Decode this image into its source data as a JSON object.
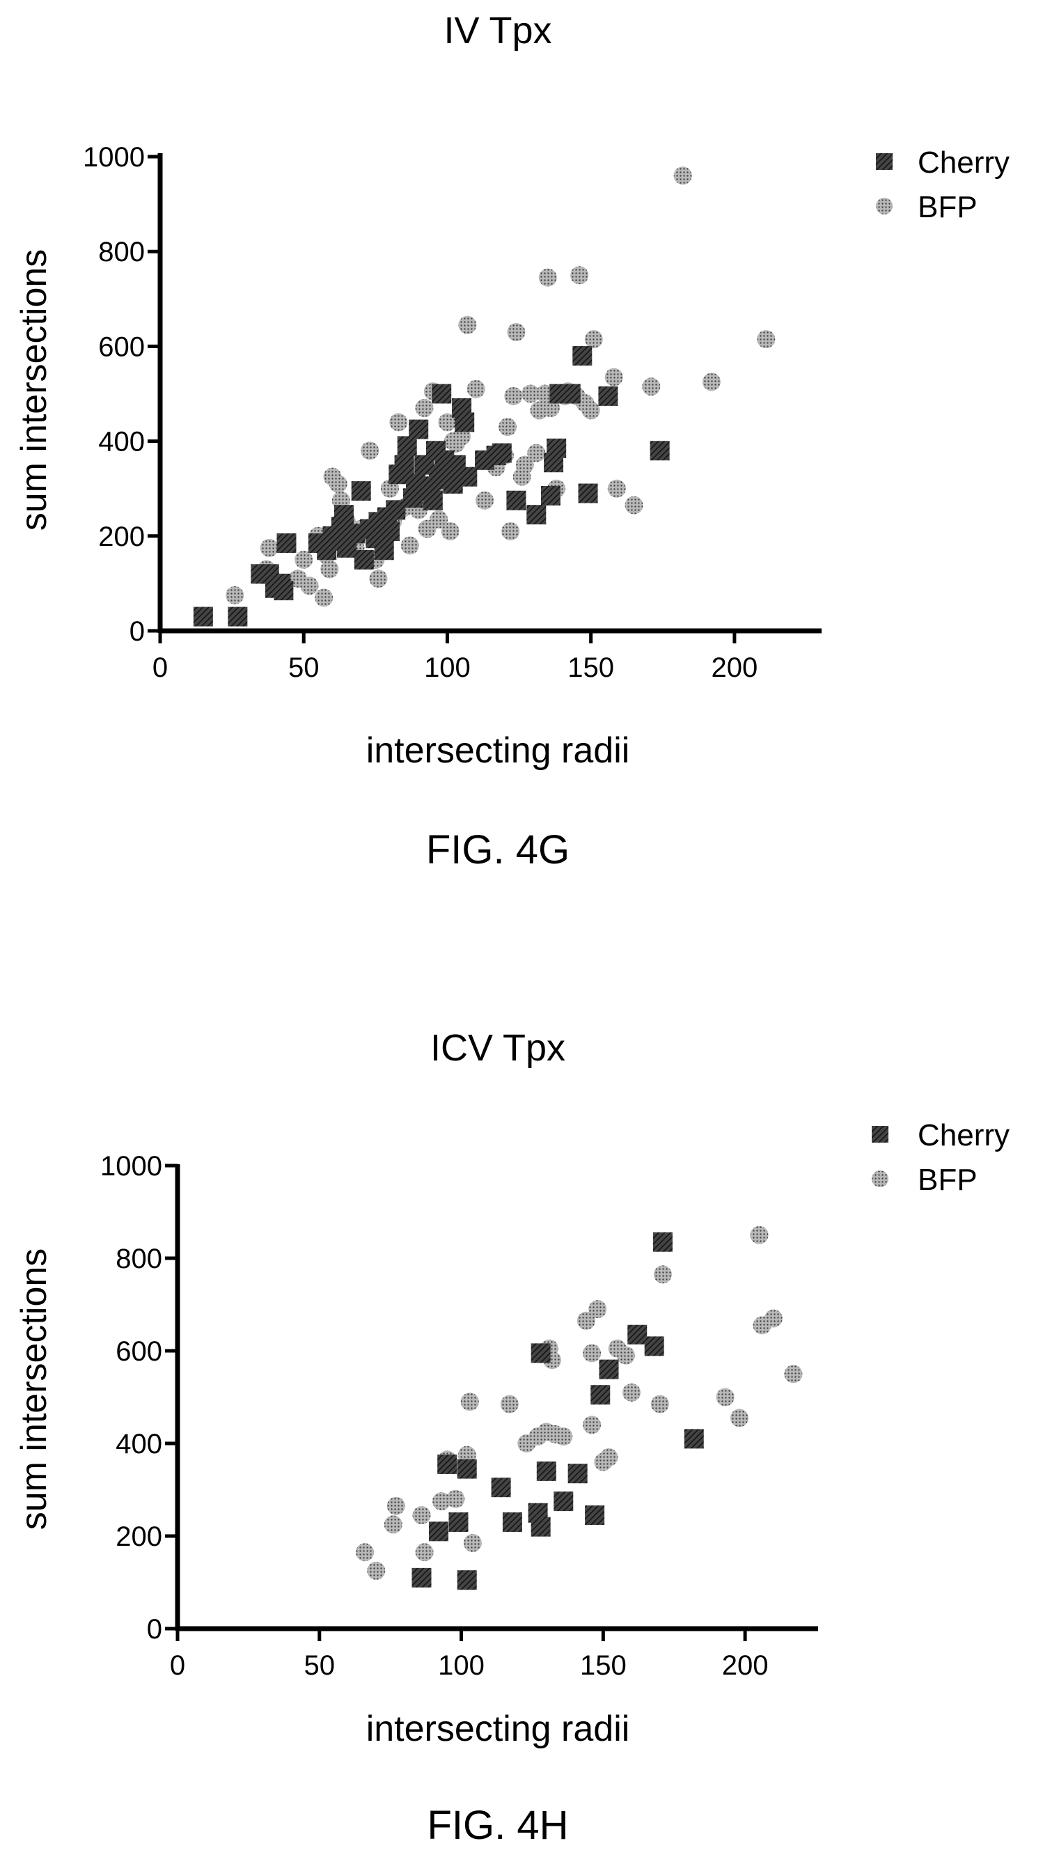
{
  "patterns": {
    "cherry_fill": "#444444",
    "cherry_stripe": "#111111",
    "bfp_fill": "#b8b8b8",
    "bfp_dot": "#444444"
  },
  "chart_data": [
    {
      "type": "scatter",
      "title": "IV Tpx",
      "xlabel": "intersecting radii",
      "ylabel": "sum intersections",
      "caption": "FIG. 4G",
      "xlim": [
        0,
        225
      ],
      "ylim": [
        0,
        1000
      ],
      "x_ticks": [
        0,
        50,
        100,
        150,
        200
      ],
      "y_ticks": [
        0,
        200,
        400,
        600,
        800,
        1000
      ],
      "grid": false,
      "legend_position": "top-right",
      "series": [
        {
          "name": "Cherry",
          "marker": "square",
          "points": [
            [
              15,
              30
            ],
            [
              27,
              30
            ],
            [
              35,
              120
            ],
            [
              38,
              120
            ],
            [
              40,
              90
            ],
            [
              42,
              100
            ],
            [
              43,
              85
            ],
            [
              44,
              185
            ],
            [
              55,
              185
            ],
            [
              58,
              170
            ],
            [
              60,
              200
            ],
            [
              62,
              190
            ],
            [
              63,
              220
            ],
            [
              64,
              245
            ],
            [
              65,
              175
            ],
            [
              68,
              205
            ],
            [
              70,
              295
            ],
            [
              71,
              150
            ],
            [
              73,
              215
            ],
            [
              75,
              195
            ],
            [
              76,
              230
            ],
            [
              78,
              170
            ],
            [
              79,
              240
            ],
            [
              80,
              210
            ],
            [
              82,
              255
            ],
            [
              83,
              330
            ],
            [
              85,
              350
            ],
            [
              86,
              390
            ],
            [
              88,
              280
            ],
            [
              89,
              310
            ],
            [
              90,
              425
            ],
            [
              92,
              350
            ],
            [
              93,
              295
            ],
            [
              94,
              305
            ],
            [
              95,
              275
            ],
            [
              96,
              380
            ],
            [
              97,
              330
            ],
            [
              98,
              500
            ],
            [
              99,
              360
            ],
            [
              100,
              320
            ],
            [
              102,
              310
            ],
            [
              103,
              350
            ],
            [
              105,
              470
            ],
            [
              106,
              440
            ],
            [
              107,
              325
            ],
            [
              113,
              360
            ],
            [
              117,
              370
            ],
            [
              119,
              375
            ],
            [
              124,
              275
            ],
            [
              131,
              245
            ],
            [
              136,
              285
            ],
            [
              137,
              355
            ],
            [
              138,
              385
            ],
            [
              139,
              500
            ],
            [
              143,
              500
            ],
            [
              147,
              580
            ],
            [
              149,
              290
            ],
            [
              156,
              495
            ],
            [
              174,
              380
            ]
          ]
        },
        {
          "name": "BFP",
          "marker": "circle",
          "points": [
            [
              26,
              75
            ],
            [
              37,
              130
            ],
            [
              38,
              175
            ],
            [
              48,
              110
            ],
            [
              50,
              150
            ],
            [
              52,
              95
            ],
            [
              55,
              200
            ],
            [
              57,
              70
            ],
            [
              58,
              160
            ],
            [
              59,
              130
            ],
            [
              60,
              325
            ],
            [
              62,
              310
            ],
            [
              63,
              275
            ],
            [
              65,
              230
            ],
            [
              67,
              200
            ],
            [
              68,
              175
            ],
            [
              70,
              215
            ],
            [
              73,
              380
            ],
            [
              75,
              150
            ],
            [
              76,
              110
            ],
            [
              78,
              175
            ],
            [
              80,
              300
            ],
            [
              81,
              230
            ],
            [
              83,
              440
            ],
            [
              85,
              260
            ],
            [
              87,
              180
            ],
            [
              89,
              345
            ],
            [
              90,
              255
            ],
            [
              92,
              470
            ],
            [
              93,
              215
            ],
            [
              95,
              505
            ],
            [
              96,
              300
            ],
            [
              97,
              235
            ],
            [
              100,
              440
            ],
            [
              101,
              210
            ],
            [
              102,
              400
            ],
            [
              103,
              395
            ],
            [
              105,
              410
            ],
            [
              107,
              645
            ],
            [
              110,
              510
            ],
            [
              113,
              275
            ],
            [
              117,
              345
            ],
            [
              120,
              370
            ],
            [
              121,
              430
            ],
            [
              122,
              210
            ],
            [
              123,
              495
            ],
            [
              124,
              630
            ],
            [
              126,
              325
            ],
            [
              127,
              350
            ],
            [
              129,
              500
            ],
            [
              131,
              375
            ],
            [
              132,
              465
            ],
            [
              134,
              500
            ],
            [
              135,
              745
            ],
            [
              136,
              470
            ],
            [
              138,
              300
            ],
            [
              141,
              495
            ],
            [
              142,
              505
            ],
            [
              145,
              495
            ],
            [
              146,
              750
            ],
            [
              148,
              480
            ],
            [
              150,
              465
            ],
            [
              151,
              615
            ],
            [
              158,
              535
            ],
            [
              159,
              300
            ],
            [
              165,
              265
            ],
            [
              171,
              515
            ],
            [
              182,
              960
            ],
            [
              192,
              525
            ],
            [
              211,
              615
            ]
          ]
        }
      ]
    },
    {
      "type": "scatter",
      "title": "ICV Tpx",
      "xlabel": "intersecting radii",
      "ylabel": "sum intersections",
      "caption": "FIG. 4H",
      "xlim": [
        0,
        225
      ],
      "ylim": [
        0,
        1000
      ],
      "x_ticks": [
        0,
        50,
        100,
        150,
        200
      ],
      "y_ticks": [
        0,
        200,
        400,
        600,
        800,
        1000
      ],
      "grid": false,
      "legend_position": "top-right",
      "series": [
        {
          "name": "Cherry",
          "marker": "square",
          "points": [
            [
              86,
              110
            ],
            [
              92,
              210
            ],
            [
              95,
              355
            ],
            [
              99,
              230
            ],
            [
              102,
              345
            ],
            [
              102,
              105
            ],
            [
              114,
              305
            ],
            [
              118,
              230
            ],
            [
              127,
              250
            ],
            [
              128,
              595
            ],
            [
              128,
              220
            ],
            [
              130,
              340
            ],
            [
              136,
              275
            ],
            [
              141,
              335
            ],
            [
              147,
              245
            ],
            [
              149,
              505
            ],
            [
              152,
              560
            ],
            [
              162,
              635
            ],
            [
              168,
              610
            ],
            [
              171,
              835
            ],
            [
              182,
              410
            ]
          ]
        },
        {
          "name": "BFP",
          "marker": "circle",
          "points": [
            [
              66,
              165
            ],
            [
              70,
              125
            ],
            [
              76,
              225
            ],
            [
              77,
              265
            ],
            [
              86,
              245
            ],
            [
              87,
              165
            ],
            [
              93,
              275
            ],
            [
              95,
              365
            ],
            [
              98,
              280
            ],
            [
              102,
              375
            ],
            [
              103,
              490
            ],
            [
              104,
              185
            ],
            [
              117,
              485
            ],
            [
              123,
              400
            ],
            [
              127,
              415
            ],
            [
              130,
              425
            ],
            [
              131,
              605
            ],
            [
              132,
              580
            ],
            [
              133,
              420
            ],
            [
              136,
              415
            ],
            [
              144,
              665
            ],
            [
              146,
              595
            ],
            [
              146,
              440
            ],
            [
              148,
              690
            ],
            [
              150,
              360
            ],
            [
              152,
              370
            ],
            [
              155,
              605
            ],
            [
              158,
              590
            ],
            [
              160,
              510
            ],
            [
              170,
              485
            ],
            [
              171,
              765
            ],
            [
              193,
              500
            ],
            [
              198,
              455
            ],
            [
              205,
              850
            ],
            [
              206,
              655
            ],
            [
              210,
              670
            ],
            [
              217,
              550
            ]
          ]
        }
      ]
    }
  ]
}
